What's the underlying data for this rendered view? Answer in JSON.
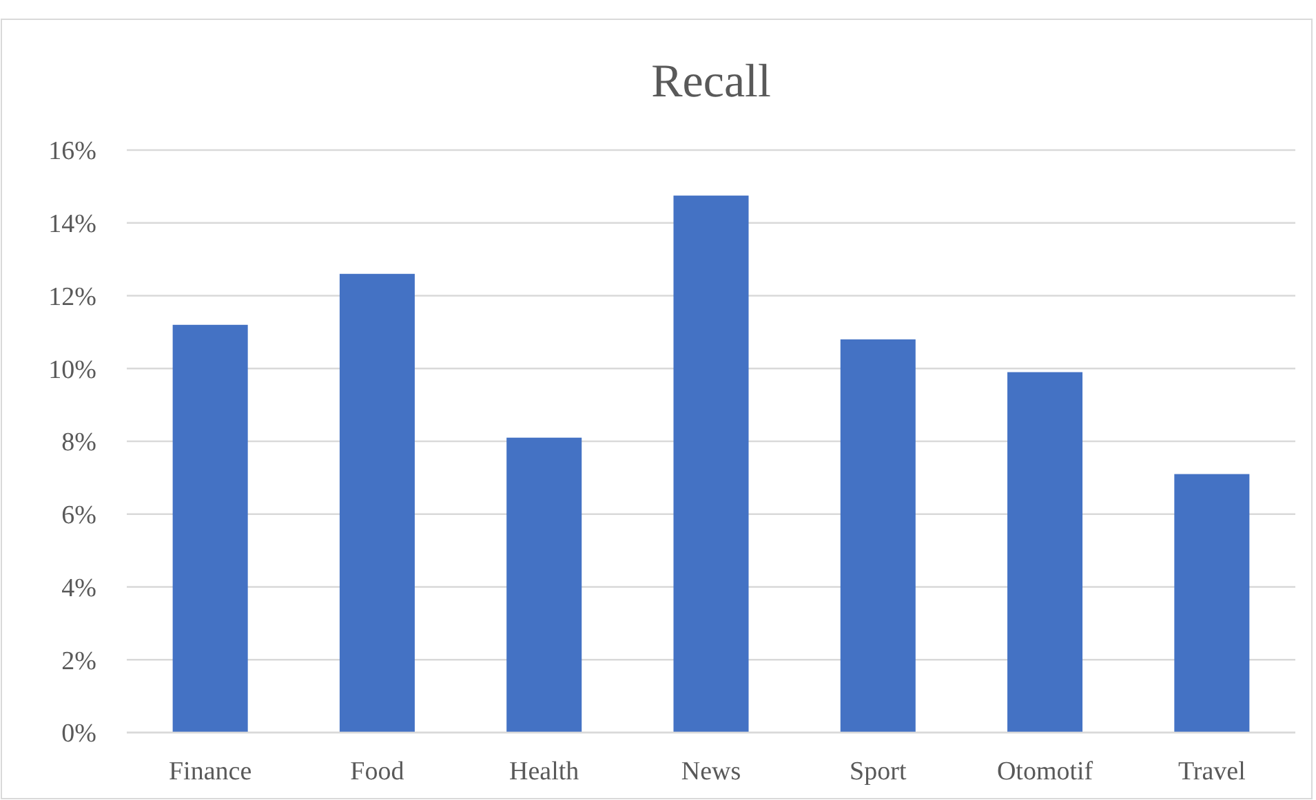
{
  "chart_data": {
    "type": "bar",
    "title": "Recall",
    "categories": [
      "Finance",
      "Food",
      "Health",
      "News",
      "Sport",
      "Otomotif",
      "Travel"
    ],
    "values": [
      11.2,
      12.6,
      8.1,
      14.75,
      10.8,
      9.9,
      7.1
    ],
    "color": "#4472c4",
    "ylim": [
      0,
      16
    ],
    "yticks": [
      {
        "value": 0,
        "label": "0%"
      },
      {
        "value": 2,
        "label": "2%"
      },
      {
        "value": 4,
        "label": "4%"
      },
      {
        "value": 6,
        "label": "6%"
      },
      {
        "value": 8,
        "label": "8%"
      },
      {
        "value": 10,
        "label": "10%"
      },
      {
        "value": 12,
        "label": "12%"
      },
      {
        "value": 14,
        "label": "14%"
      },
      {
        "value": 16,
        "label": "16%"
      }
    ],
    "grid": "y"
  }
}
